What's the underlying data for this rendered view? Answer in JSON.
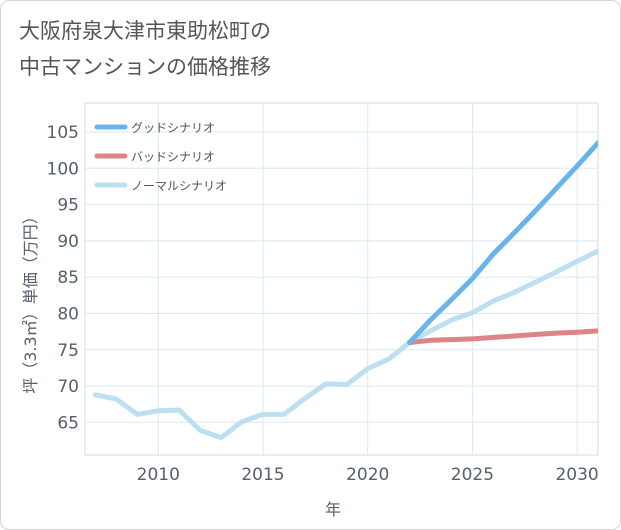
{
  "title": {
    "line1": "大阪府泉大津市東助松町の",
    "line2": "中古マンションの価格推移"
  },
  "chart_data": {
    "type": "line",
    "xlabel": "年",
    "ylabel": "坪（3.3㎡）単価（万円）",
    "xlim": [
      2006.5,
      2031
    ],
    "ylim": [
      60.5,
      109
    ],
    "x_ticks": [
      2010,
      2015,
      2020,
      2025,
      2030
    ],
    "y_ticks": [
      65,
      70,
      75,
      80,
      85,
      90,
      95,
      100,
      105
    ],
    "grid": true,
    "legend_position": "top-left",
    "series": [
      {
        "name": "グッドシナリオ",
        "color": "#6ab4ec",
        "x": [
          2022,
          2023,
          2024,
          2025,
          2026,
          2027,
          2028,
          2029,
          2030,
          2031
        ],
        "values": [
          76.0,
          79.1,
          81.9,
          84.8,
          88.2,
          91.1,
          94.1,
          97.2,
          100.3,
          103.5
        ]
      },
      {
        "name": "バッドシナリオ",
        "color": "#dc8487",
        "x": [
          2022,
          2023,
          2024,
          2025,
          2026,
          2027,
          2028,
          2029,
          2030,
          2031
        ],
        "values": [
          76.0,
          76.3,
          76.4,
          76.5,
          76.7,
          76.9,
          77.1,
          77.3,
          77.4,
          77.6
        ]
      },
      {
        "name": "ノーマルシナリオ",
        "color": "#bde0f1",
        "x": [
          2007,
          2008,
          2009,
          2010,
          2011,
          2012,
          2013,
          2014,
          2015,
          2016,
          2017,
          2018,
          2019,
          2020,
          2021,
          2022,
          2023,
          2024,
          2025,
          2026,
          2027,
          2028,
          2029,
          2030,
          2031
        ],
        "values": [
          68.8,
          68.2,
          66.1,
          66.6,
          66.7,
          63.9,
          62.9,
          65.1,
          66.1,
          66.1,
          68.3,
          70.3,
          70.2,
          72.4,
          73.7,
          76.0,
          77.6,
          79.1,
          80.1,
          81.7,
          82.9,
          84.3,
          85.7,
          87.2,
          88.6
        ]
      }
    ]
  }
}
